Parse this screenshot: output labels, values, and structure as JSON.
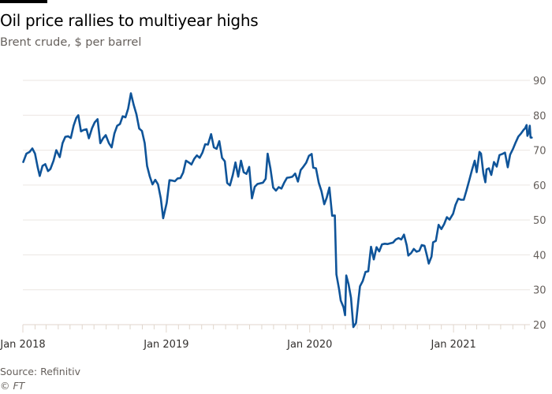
{
  "chart_data": {
    "type": "line",
    "title": "Oil price rallies to multiyear highs",
    "subtitle": "Brent crude, $ per barrel",
    "xlabel": "",
    "ylabel": "",
    "ylim": [
      20,
      90
    ],
    "xlim": [
      "2018-01-01",
      "2021-07-19"
    ],
    "yticks": [
      20,
      30,
      40,
      50,
      60,
      70,
      80,
      90
    ],
    "xtick_labels": [
      {
        "date": "2018-01-01",
        "label": "Jan 2018"
      },
      {
        "date": "2019-01-01",
        "label": "Jan 2019"
      },
      {
        "date": "2020-01-01",
        "label": "Jan 2020"
      },
      {
        "date": "2021-01-01",
        "label": "Jan 2021"
      }
    ],
    "grid": true,
    "line_color": "#0f5499",
    "series": [
      {
        "name": "Brent crude",
        "points": [
          [
            "2018-01-02",
            66.6
          ],
          [
            "2018-01-10",
            69
          ],
          [
            "2018-01-18",
            69.5
          ],
          [
            "2018-01-25",
            70.5
          ],
          [
            "2018-02-01",
            69
          ],
          [
            "2018-02-08",
            65
          ],
          [
            "2018-02-13",
            62.6
          ],
          [
            "2018-02-20",
            65.5
          ],
          [
            "2018-02-27",
            66
          ],
          [
            "2018-03-06",
            64
          ],
          [
            "2018-03-12",
            64.6
          ],
          [
            "2018-03-20",
            67
          ],
          [
            "2018-03-27",
            70
          ],
          [
            "2018-04-05",
            68
          ],
          [
            "2018-04-12",
            72
          ],
          [
            "2018-04-19",
            73.8
          ],
          [
            "2018-04-26",
            74
          ],
          [
            "2018-05-03",
            73.5
          ],
          [
            "2018-05-10",
            77
          ],
          [
            "2018-05-17",
            79.3
          ],
          [
            "2018-05-22",
            80
          ],
          [
            "2018-05-29",
            75.4
          ],
          [
            "2018-06-05",
            75.8
          ],
          [
            "2018-06-12",
            76
          ],
          [
            "2018-06-18",
            73.4
          ],
          [
            "2018-06-26",
            76.3
          ],
          [
            "2018-07-03",
            78
          ],
          [
            "2018-07-10",
            78.9
          ],
          [
            "2018-07-17",
            72
          ],
          [
            "2018-07-24",
            73.4
          ],
          [
            "2018-07-31",
            74.3
          ],
          [
            "2018-08-08",
            72
          ],
          [
            "2018-08-15",
            70.8
          ],
          [
            "2018-08-22",
            74.8
          ],
          [
            "2018-08-29",
            77
          ],
          [
            "2018-09-05",
            77.5
          ],
          [
            "2018-09-12",
            79.7
          ],
          [
            "2018-09-19",
            79.4
          ],
          [
            "2018-09-26",
            81.9
          ],
          [
            "2018-10-03",
            86.3
          ],
          [
            "2018-10-10",
            83
          ],
          [
            "2018-10-17",
            80.3
          ],
          [
            "2018-10-24",
            76.2
          ],
          [
            "2018-10-31",
            75.5
          ],
          [
            "2018-11-07",
            72
          ],
          [
            "2018-11-13",
            65.5
          ],
          [
            "2018-11-20",
            62.5
          ],
          [
            "2018-11-27",
            60.2
          ],
          [
            "2018-12-04",
            61.5
          ],
          [
            "2018-12-11",
            60.2
          ],
          [
            "2018-12-18",
            56.2
          ],
          [
            "2018-12-24",
            50.5
          ],
          [
            "2019-01-02",
            54.9
          ],
          [
            "2019-01-09",
            61.4
          ],
          [
            "2019-01-16",
            61.3
          ],
          [
            "2019-01-23",
            61.1
          ],
          [
            "2019-01-30",
            61.9
          ],
          [
            "2019-02-06",
            62
          ],
          [
            "2019-02-13",
            63.6
          ],
          [
            "2019-02-20",
            67
          ],
          [
            "2019-02-27",
            66.5
          ],
          [
            "2019-03-06",
            65.9
          ],
          [
            "2019-03-13",
            67.5
          ],
          [
            "2019-03-20",
            68.5
          ],
          [
            "2019-03-27",
            67.8
          ],
          [
            "2019-04-03",
            69.3
          ],
          [
            "2019-04-10",
            71.7
          ],
          [
            "2019-04-17",
            71.6
          ],
          [
            "2019-04-25",
            74.6
          ],
          [
            "2019-05-02",
            70.8
          ],
          [
            "2019-05-09",
            70.4
          ],
          [
            "2019-05-16",
            72.6
          ],
          [
            "2019-05-23",
            67.8
          ],
          [
            "2019-05-30",
            66.8
          ],
          [
            "2019-06-05",
            60.6
          ],
          [
            "2019-06-12",
            59.9
          ],
          [
            "2019-06-19",
            62.8
          ],
          [
            "2019-06-26",
            66.5
          ],
          [
            "2019-07-03",
            62.4
          ],
          [
            "2019-07-10",
            67
          ],
          [
            "2019-07-17",
            63.7
          ],
          [
            "2019-07-24",
            63.2
          ],
          [
            "2019-07-31",
            65.2
          ],
          [
            "2019-08-07",
            56.2
          ],
          [
            "2019-08-14",
            59.5
          ],
          [
            "2019-08-21",
            60.3
          ],
          [
            "2019-08-28",
            60.5
          ],
          [
            "2019-09-04",
            60.7
          ],
          [
            "2019-09-11",
            61.8
          ],
          [
            "2019-09-16",
            69
          ],
          [
            "2019-09-23",
            64.8
          ],
          [
            "2019-09-30",
            59.3
          ],
          [
            "2019-10-07",
            58.4
          ],
          [
            "2019-10-14",
            59.4
          ],
          [
            "2019-10-21",
            59
          ],
          [
            "2019-10-28",
            60.7
          ],
          [
            "2019-11-04",
            62.1
          ],
          [
            "2019-11-11",
            62.2
          ],
          [
            "2019-11-18",
            62.4
          ],
          [
            "2019-11-25",
            63.3
          ],
          [
            "2019-12-02",
            61
          ],
          [
            "2019-12-09",
            64.3
          ],
          [
            "2019-12-16",
            65.3
          ],
          [
            "2019-12-23",
            66.4
          ],
          [
            "2019-12-30",
            68.4
          ],
          [
            "2020-01-06",
            68.9
          ],
          [
            "2020-01-10",
            65
          ],
          [
            "2020-01-17",
            64.8
          ],
          [
            "2020-01-24",
            60.7
          ],
          [
            "2020-01-31",
            58.2
          ],
          [
            "2020-02-07",
            54.5
          ],
          [
            "2020-02-13",
            56.3
          ],
          [
            "2020-02-20",
            59.3
          ],
          [
            "2020-02-27",
            51.2
          ],
          [
            "2020-03-05",
            51.3
          ],
          [
            "2020-03-09",
            34.4
          ],
          [
            "2020-03-16",
            30
          ],
          [
            "2020-03-20",
            26.9
          ],
          [
            "2020-03-27",
            25
          ],
          [
            "2020-03-31",
            22.7
          ],
          [
            "2020-04-03",
            34.1
          ],
          [
            "2020-04-09",
            31.5
          ],
          [
            "2020-04-15",
            27.7
          ],
          [
            "2020-04-21",
            19.3
          ],
          [
            "2020-04-28",
            20.5
          ],
          [
            "2020-05-04",
            27
          ],
          [
            "2020-05-08",
            31
          ],
          [
            "2020-05-15",
            32.5
          ],
          [
            "2020-05-22",
            35.1
          ],
          [
            "2020-05-29",
            35.3
          ],
          [
            "2020-06-05",
            42.3
          ],
          [
            "2020-06-12",
            38.7
          ],
          [
            "2020-06-19",
            42.2
          ],
          [
            "2020-06-26",
            41
          ],
          [
            "2020-07-03",
            43
          ],
          [
            "2020-07-10",
            43.2
          ],
          [
            "2020-07-17",
            43.1
          ],
          [
            "2020-07-24",
            43.3
          ],
          [
            "2020-07-31",
            43.5
          ],
          [
            "2020-08-07",
            44.4
          ],
          [
            "2020-08-14",
            44.8
          ],
          [
            "2020-08-21",
            44.4
          ],
          [
            "2020-08-28",
            45.8
          ],
          [
            "2020-09-04",
            42.7
          ],
          [
            "2020-09-08",
            39.8
          ],
          [
            "2020-09-15",
            40.5
          ],
          [
            "2020-09-22",
            41.7
          ],
          [
            "2020-09-29",
            40.9
          ],
          [
            "2020-10-06",
            41.2
          ],
          [
            "2020-10-12",
            42.8
          ],
          [
            "2020-10-19",
            42.6
          ],
          [
            "2020-10-26",
            39.5
          ],
          [
            "2020-10-30",
            37.5
          ],
          [
            "2020-11-06",
            39.5
          ],
          [
            "2020-11-10",
            43.6
          ],
          [
            "2020-11-17",
            44
          ],
          [
            "2020-11-24",
            48.6
          ],
          [
            "2020-12-01",
            47.4
          ],
          [
            "2020-12-08",
            48.8
          ],
          [
            "2020-12-15",
            50.8
          ],
          [
            "2020-12-22",
            50.1
          ],
          [
            "2020-12-31",
            51.8
          ],
          [
            "2021-01-06",
            54.3
          ],
          [
            "2021-01-13",
            56.1
          ],
          [
            "2021-01-20",
            55.8
          ],
          [
            "2021-01-27",
            55.8
          ],
          [
            "2021-02-03",
            58.5
          ],
          [
            "2021-02-10",
            61.4
          ],
          [
            "2021-02-17",
            64.3
          ],
          [
            "2021-02-24",
            67
          ],
          [
            "2021-03-01",
            63.7
          ],
          [
            "2021-03-08",
            69.5
          ],
          [
            "2021-03-12",
            69
          ],
          [
            "2021-03-18",
            63.3
          ],
          [
            "2021-03-23",
            60.8
          ],
          [
            "2021-03-26",
            64.5
          ],
          [
            "2021-04-01",
            64.8
          ],
          [
            "2021-04-07",
            62.9
          ],
          [
            "2021-04-14",
            66.6
          ],
          [
            "2021-04-21",
            65.3
          ],
          [
            "2021-04-28",
            68.6
          ],
          [
            "2021-05-05",
            68.9
          ],
          [
            "2021-05-12",
            69.3
          ],
          [
            "2021-05-19",
            65.1
          ],
          [
            "2021-05-25",
            68.7
          ],
          [
            "2021-06-01",
            70.3
          ],
          [
            "2021-06-08",
            72.2
          ],
          [
            "2021-06-15",
            73.9
          ],
          [
            "2021-06-22",
            74.8
          ],
          [
            "2021-06-29",
            75.9
          ],
          [
            "2021-07-02",
            76.2
          ],
          [
            "2021-07-06",
            77.2
          ],
          [
            "2021-07-08",
            74.1
          ],
          [
            "2021-07-12",
            75.2
          ],
          [
            "2021-07-14",
            77
          ],
          [
            "2021-07-16",
            73.6
          ],
          [
            "2021-07-19",
            73.6
          ]
        ]
      }
    ]
  },
  "footer": {
    "source": "Source: Refinitiv",
    "copyright": "© FT"
  }
}
